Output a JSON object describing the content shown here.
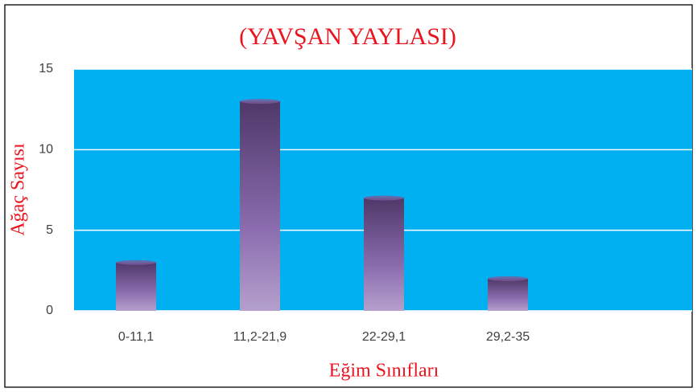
{
  "chart_data": {
    "type": "bar",
    "title": "(YAVŞAN YAYLASI)",
    "x_label": "Eğim Sınıfları",
    "y_label": "Ağaç Sayısı",
    "categories": [
      "0-11,1",
      "11,2-21,9",
      "22-29,1",
      "29,2-35",
      null
    ],
    "values": [
      3,
      13,
      7,
      2,
      null
    ],
    "color": "#7a5c9e",
    "plot_background": "#00b0f0",
    "ylim": [
      0,
      15
    ],
    "yticks": [
      0,
      5,
      10,
      15
    ],
    "grid": true
  }
}
